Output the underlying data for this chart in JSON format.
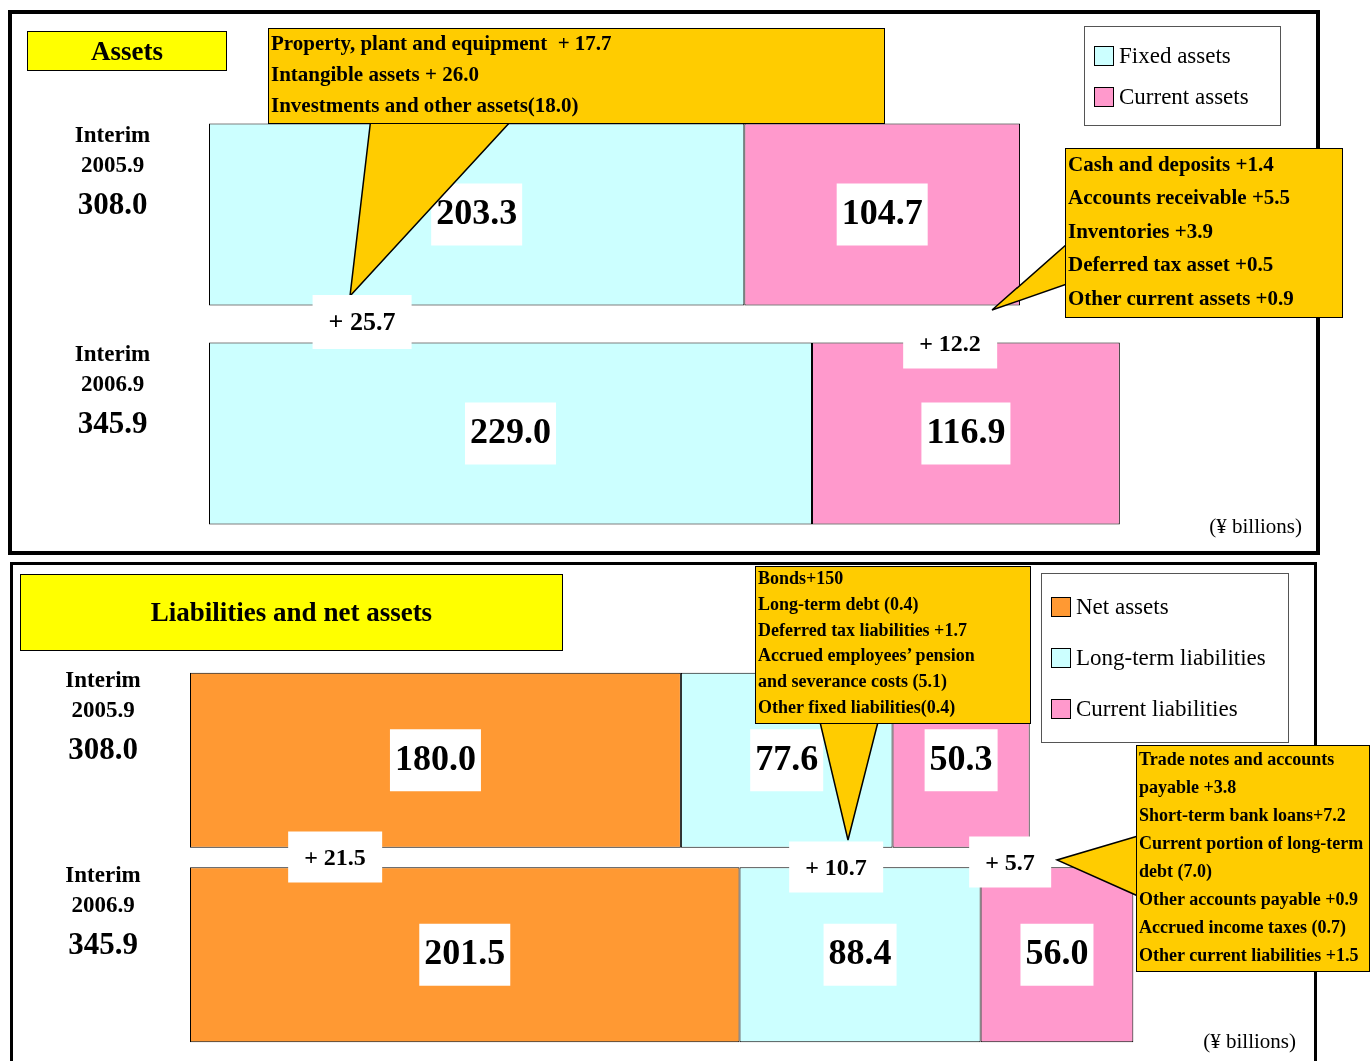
{
  "chart_data": [
    {
      "type": "bar",
      "title": "Assets",
      "orientation": "horizontal",
      "stacked": true,
      "legend": "top right",
      "categories": [
        "Interim 2005.9",
        "Interim 2006.9"
      ],
      "totals": [
        "308.0",
        "345.9"
      ],
      "series": [
        {
          "name": "Fixed assets",
          "color": "#ccffff",
          "values": [
            203.3,
            229.0
          ],
          "value_labels": [
            "203.3",
            "229.0"
          ]
        },
        {
          "name": "Current assets",
          "color": "#ff99cc",
          "values": [
            104.7,
            116.9
          ],
          "value_labels": [
            "104.7",
            "116.9"
          ]
        }
      ],
      "annotations": [
        "Property, plant and equipment  + 17.7\nIntangible assets + 26.0\nInvestments and other assets(18.0)",
        "Cash and deposits +1.4\nAccounts receivable +5.5\nInventories +3.9\nDeferred tax asset +0.5\nOther current assets +0.9",
        "+ 25.7",
        "+ 12.2",
        "(¥ billions)"
      ]
    },
    {
      "type": "bar",
      "title": "Liabilities and net assets",
      "orientation": "horizontal",
      "stacked": true,
      "legend": "top right",
      "categories": [
        "Interim 2005.9",
        "Interim 2006.9"
      ],
      "totals": [
        "308.0",
        "345.9"
      ],
      "series": [
        {
          "name": "Net assets",
          "color": "#ff9933",
          "values": [
            180.0,
            201.5
          ],
          "value_labels": [
            "180.0",
            "201.5"
          ]
        },
        {
          "name": "Long-term liabilities",
          "color": "#ccffff",
          "values": [
            77.6,
            88.4
          ],
          "value_labels": [
            "77.6",
            "88.4"
          ]
        },
        {
          "name": "Current liabilities",
          "color": "#ff99cc",
          "values": [
            50.3,
            56.0
          ],
          "value_labels": [
            "50.3",
            "56.0"
          ]
        }
      ],
      "annotations": [
        "Bonds+150\nLong-term debt (0.4)\nDeferred tax liabilities +1.7\nAccrued employees’ pension\nand severance costs (5.1)\nOther fixed liabilities(0.4)",
        "Trade notes and accounts\npayable +3.8\nShort-term bank loans+7.2\nCurrent portion of long-term\ndebt (7.0)\nOther accounts payable +0.9\nAccrued income taxes (0.7)\nOther current liabilities +1.5",
        "+ 21.5",
        "+ 10.7",
        "+ 5.7",
        "(¥ billions)"
      ]
    }
  ]
}
